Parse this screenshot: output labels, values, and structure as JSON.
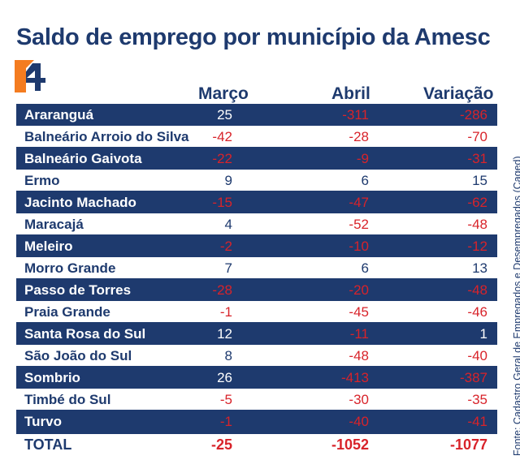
{
  "title": "Saldo de emprego por município da Amesc",
  "logo_text": "4",
  "headers": {
    "marco": "Março",
    "abril": "Abril",
    "variacao": "Variação"
  },
  "rows": [
    {
      "name": "Araranguá",
      "marco": "25",
      "abril": "-311",
      "variacao": "-286"
    },
    {
      "name": "Balneário Arroio do Silva",
      "marco": "-42",
      "abril": "-28",
      "variacao": "-70"
    },
    {
      "name": "Balneário Gaivota",
      "marco": "-22",
      "abril": "-9",
      "variacao": "-31"
    },
    {
      "name": "Ermo",
      "marco": "9",
      "abril": "6",
      "variacao": "15"
    },
    {
      "name": "Jacinto Machado",
      "marco": "-15",
      "abril": "-47",
      "variacao": "-62"
    },
    {
      "name": "Maracajá",
      "marco": "4",
      "abril": "-52",
      "variacao": "-48"
    },
    {
      "name": "Meleiro",
      "marco": "-2",
      "abril": "-10",
      "variacao": "-12"
    },
    {
      "name": "Morro Grande",
      "marco": "7",
      "abril": "6",
      "variacao": "13"
    },
    {
      "name": "Passo de Torres",
      "marco": "-28",
      "abril": "-20",
      "variacao": "-48"
    },
    {
      "name": "Praia Grande",
      "marco": "-1",
      "abril": "-45",
      "variacao": "-46"
    },
    {
      "name": "Santa Rosa do Sul",
      "marco": "12",
      "abril": "-11",
      "variacao": "1"
    },
    {
      "name": "São João do Sul",
      "marco": "8",
      "abril": "-48",
      "variacao": "-40"
    },
    {
      "name": "Sombrio",
      "marco": "26",
      "abril": "-413",
      "variacao": "-387"
    },
    {
      "name": "Timbé do Sul",
      "marco": "-5",
      "abril": "-30",
      "variacao": "-35"
    },
    {
      "name": "Turvo",
      "marco": "-1",
      "abril": "-40",
      "variacao": "-41"
    }
  ],
  "total": {
    "name": "TOTAL",
    "marco": "-25",
    "abril": "-1052",
    "variacao": "-1077"
  },
  "source": "Fonte: Cadastro Geral de Empregados e Desempregados (Caged)",
  "colors": {
    "navy": "#1e3a6e",
    "negative": "#d8232a",
    "logo_orange": "#f47c20"
  }
}
